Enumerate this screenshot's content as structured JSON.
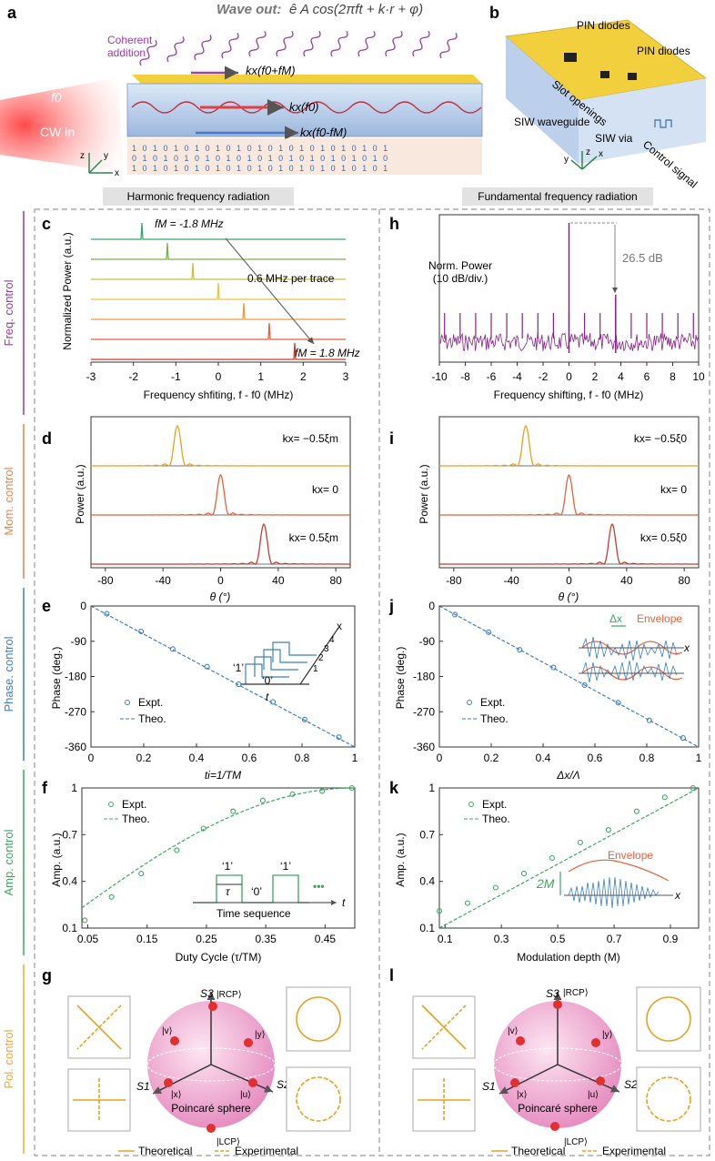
{
  "panel_a": {
    "letter": "a",
    "wave_out_prefix": "Wave out:",
    "wave_out_formula": "ê A cos(2πft + k·r + φ)",
    "coherent_addition": [
      "Coherent",
      "addition"
    ],
    "f0_label": "f0",
    "cw_in": "CW in",
    "kx_up": "kx(f0+fM)",
    "kx_mid": "kx(f0)",
    "kx_down": "kx(f0-fM)",
    "binary_rows": [
      "1 0 1 0 1 0 1 0 1 0 1 0 1 0 1 0 1 0 1 0 1 0 1 0 1",
      "0 1 0 1 0 1 0 1 0 1 0 1 0 1 0 1 0 1 0 1 0 1 0 1 0",
      "1 0 1 0 1 0 1 0 1 0 1 0 1 0 1 0 1 0 1 0 1 0 1 0 1"
    ],
    "axes": [
      "z",
      "y",
      "x"
    ]
  },
  "panel_b": {
    "letter": "b",
    "pin1": "PIN diodes",
    "pin2": "PIN diodes",
    "slot": "Slot openings",
    "siw_wg": "SIW waveguide",
    "siw_via": "SIW via",
    "control": "Control signal",
    "axes": [
      "z",
      "y",
      "x"
    ]
  },
  "headers": {
    "left": "Harmonic frequency radiation",
    "right": "Fundamental frequency radiation"
  },
  "side_labels": [
    {
      "text": "Freq. control",
      "color": "#9a3b9a"
    },
    {
      "text": "Mom. control",
      "color": "#e8824a"
    },
    {
      "text": "Phase. control",
      "color": "#3b7fc4"
    },
    {
      "text": "Amp. control",
      "color": "#3aa860"
    },
    {
      "text": "Pol. control",
      "color": "#f0a830"
    }
  ],
  "c": {
    "letter": "c",
    "ylabel": "Normalized Power (a.u.)",
    "xlabel": "Frequency shfiting, f - f0 (MHz)",
    "ticks": [
      "-3",
      "-2",
      "-1",
      "0",
      "1",
      "2",
      "3"
    ],
    "fm_top": "fM = -1.8 MHz",
    "fm_bot": "fM = 1.8 MHz",
    "per_trace": "0.6 MHz per trace"
  },
  "h": {
    "letter": "h",
    "ylabel": "Norm. Power",
    "ylabel2": "(10 dB/div.)",
    "xlabel": "Frequency shifting, f - f0 (MHz)",
    "ticks": [
      "-10",
      "-8",
      "-6",
      "-4",
      "-2",
      "0",
      "2",
      "4",
      "6",
      "8",
      "10"
    ],
    "db": "26.5 dB"
  },
  "d": {
    "letter": "d",
    "ylabel": "Power (a.u.)",
    "xlabel": "θ (°)",
    "ticks": [
      "-80",
      "-40",
      "0",
      "40",
      "80"
    ],
    "labels": [
      "kx= −0.5ξm",
      "kx= 0",
      "kx= 0.5ξm"
    ]
  },
  "i": {
    "letter": "i",
    "ylabel": "Power (a.u.)",
    "xlabel": "θ (°)",
    "ticks": [
      "-80",
      "-40",
      "0",
      "40",
      "80"
    ],
    "labels": [
      "kx= −0.5ξ0",
      "kx= 0",
      "kx= 0.5ξ0"
    ]
  },
  "e": {
    "letter": "e",
    "ylabel": "Phase (deg.)",
    "xlabel": "ti=1/TM",
    "yticks": [
      "0",
      "-90",
      "-180",
      "-270",
      "-360"
    ],
    "xticks": [
      "0",
      "0.2",
      "0.4",
      "0.6",
      "0.8",
      "1"
    ],
    "expt": "Expt.",
    "theo": "Theo.",
    "inset_one": "‘1’",
    "inset_zero": "‘0’",
    "inset_t": "t",
    "inset_x": "x",
    "inset_nums": [
      "4",
      "3",
      "2",
      "1"
    ]
  },
  "j": {
    "letter": "j",
    "ylabel": "Phase (deg.)",
    "xlabel": "Δx/Λ",
    "yticks": [
      "0",
      "-90",
      "-180",
      "-270",
      "-360"
    ],
    "xticks": [
      "0",
      "0.2",
      "0.4",
      "0.6",
      "0.8",
      "1"
    ],
    "expt": "Expt.",
    "theo": "Theo.",
    "dx": "Δx",
    "envelope": "Envelope",
    "x": "x"
  },
  "f": {
    "letter": "f",
    "ylabel": "Amp. (a.u.)",
    "xlabel": "Duty Cycle (τ/TM)",
    "yticks": [
      "1",
      "0.7",
      "0.4",
      "0.1"
    ],
    "xticks": [
      "0.05",
      "0.15",
      "0.25",
      "0.35",
      "0.45"
    ],
    "expt": "Expt.",
    "theo": "Theo.",
    "one": "‘1’",
    "zero": "‘0’",
    "tau": "τ",
    "time_seq": "Time sequence",
    "t": "t",
    "dots": "•••"
  },
  "k": {
    "letter": "k",
    "ylabel": "Amp. (a.u.)",
    "xlabel": "Modulation depth (M)",
    "yticks": [
      "1",
      "0.7",
      "0.4",
      "0.1"
    ],
    "xticks": [
      "0.1",
      "0.3",
      "0.5",
      "0.7",
      "0.9"
    ],
    "expt": "Expt.",
    "theo": "Theo.",
    "envelope": "Envelope",
    "twoM": "2M",
    "x": "x"
  },
  "g": {
    "letter": "g",
    "s3": "S3",
    "s1": "S1",
    "s2": "S2",
    "rcp": "|RCP⟩",
    "lcp": "|LCP⟩",
    "v": "|v⟩",
    "y": "|y⟩",
    "x": "|x⟩",
    "u": "|u⟩",
    "sphere": "Poincaré sphere",
    "theoretical": "Theoretical",
    "experimental": "Experimental"
  },
  "l": {
    "letter": "l",
    "s3": "S3",
    "s1": "S1",
    "s2": "S2",
    "rcp": "|RCP⟩",
    "lcp": "|LCP⟩",
    "v": "|v⟩",
    "y": "|y⟩",
    "x": "|x⟩",
    "u": "|u⟩",
    "sphere": "Poincaré sphere",
    "theoretical": "Theoretical",
    "experimental": "Experimental"
  },
  "chart_data": [
    {
      "panel": "c",
      "type": "line",
      "title": "",
      "xlabel": "Frequency shfiting, f - f0 (MHz)",
      "ylabel": "Normalized Power (a.u.)",
      "xlim": [
        -3,
        3
      ],
      "peaks": [
        -1.8,
        -1.2,
        -0.6,
        0,
        0.6,
        1.2,
        1.8
      ],
      "trace_colors": [
        "#3aa86a",
        "#7ab34a",
        "#c8c03a",
        "#e8c43a",
        "#f09a3a",
        "#e8603a",
        "#c83a2a"
      ]
    },
    {
      "panel": "h",
      "type": "line",
      "xlabel": "Frequency shifting, f - f0 (MHz)",
      "ylabel": "Norm. Power (10 dB/div.)",
      "xlim": [
        -10,
        10
      ],
      "main_peak": 0,
      "sideband_peak": 3.6,
      "suppression_db": 26.5
    },
    {
      "panel": "d",
      "type": "line",
      "xlabel": "θ (°)",
      "xlim": [
        -90,
        90
      ],
      "peaks": [
        -30,
        0,
        30
      ]
    },
    {
      "panel": "i",
      "type": "line",
      "xlabel": "θ (°)",
      "xlim": [
        -90,
        90
      ],
      "peaks": [
        -30,
        0,
        30
      ]
    },
    {
      "panel": "e",
      "type": "scatter",
      "x": [
        0.06,
        0.19,
        0.31,
        0.44,
        0.56,
        0.69,
        0.81,
        0.94
      ],
      "y": [
        -20,
        -65,
        -110,
        -155,
        -200,
        -245,
        -290,
        -335
      ],
      "theory_line": [
        [
          0,
          0
        ],
        [
          1,
          -360
        ]
      ],
      "xlim": [
        0,
        1
      ],
      "ylim": [
        -360,
        0
      ]
    },
    {
      "panel": "j",
      "type": "scatter",
      "x": [
        0.06,
        0.19,
        0.31,
        0.44,
        0.56,
        0.69,
        0.81,
        0.94
      ],
      "y": [
        -22,
        -67,
        -112,
        -157,
        -202,
        -247,
        -292,
        -337
      ],
      "theory_line": [
        [
          0,
          0
        ],
        [
          1,
          -360
        ]
      ],
      "xlim": [
        0,
        1
      ],
      "ylim": [
        -360,
        0
      ]
    },
    {
      "panel": "f",
      "type": "scatter",
      "x": [
        0.045,
        0.09,
        0.14,
        0.2,
        0.245,
        0.295,
        0.345,
        0.395,
        0.445,
        0.495
      ],
      "y": [
        0.15,
        0.3,
        0.45,
        0.6,
        0.74,
        0.85,
        0.92,
        0.96,
        0.98,
        1.0
      ],
      "xlim": [
        0.04,
        0.5
      ],
      "ylim": [
        0.1,
        1
      ]
    },
    {
      "panel": "k",
      "type": "scatter",
      "x": [
        0.08,
        0.18,
        0.28,
        0.38,
        0.48,
        0.58,
        0.68,
        0.78,
        0.88,
        0.98
      ],
      "y": [
        0.21,
        0.26,
        0.36,
        0.45,
        0.55,
        0.65,
        0.73,
        0.85,
        0.94,
        1.0
      ],
      "xlim": [
        0.08,
        1.0
      ],
      "ylim": [
        0.1,
        1
      ]
    }
  ]
}
